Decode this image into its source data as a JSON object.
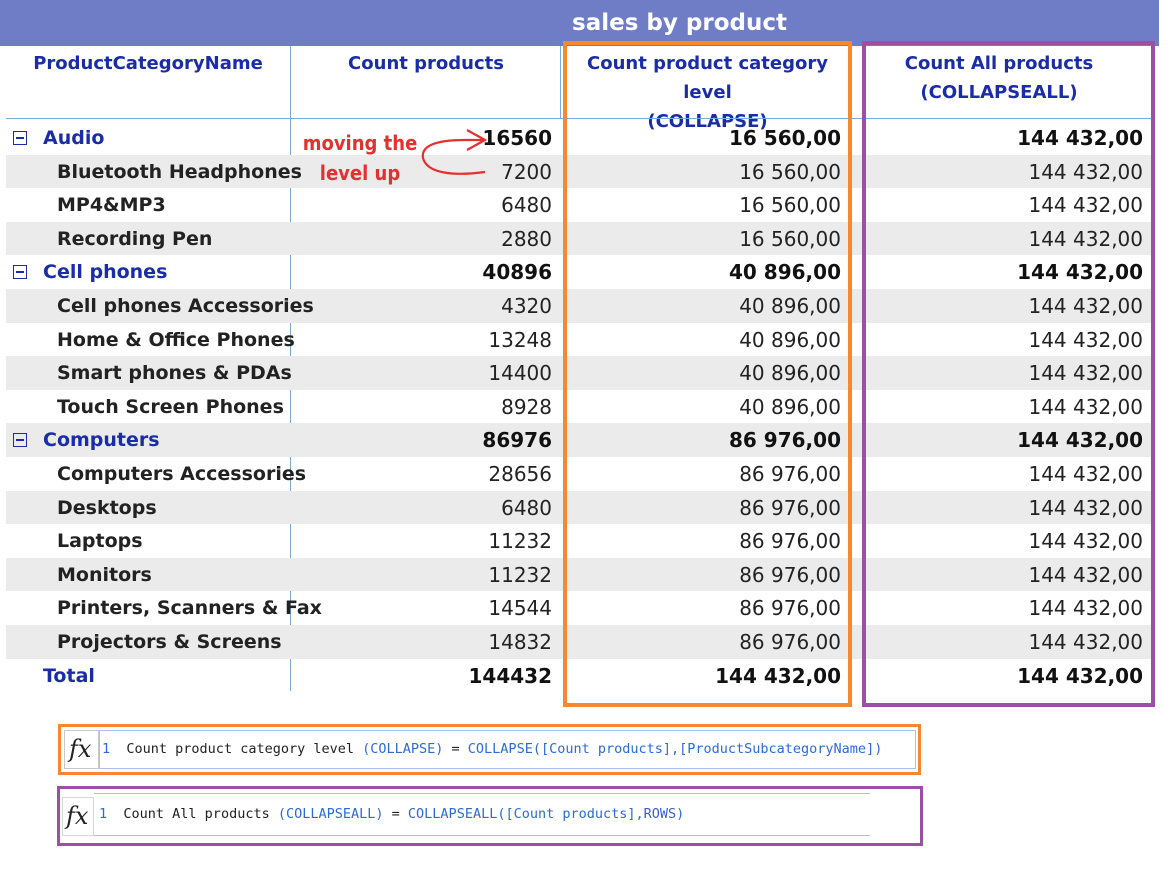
{
  "title": "sales by product",
  "headers": {
    "col0": "ProductCategoryName",
    "col1": "Count products",
    "col2_line1": "Count product category level",
    "col2_line2": "(COLLAPSE)",
    "col3_line1": "Count All products",
    "col3_line2": "(COLLAPSEALL)"
  },
  "rows": [
    {
      "type": "category",
      "name": "Audio",
      "v1": "16560",
      "v2": "16 560,00",
      "v3": "144 432,00"
    },
    {
      "type": "sub",
      "name": "Bluetooth Headphones",
      "v1": "7200",
      "v2": "16 560,00",
      "v3": "144 432,00"
    },
    {
      "type": "sub",
      "name": "MP4&MP3",
      "v1": "6480",
      "v2": "16 560,00",
      "v3": "144 432,00"
    },
    {
      "type": "sub",
      "name": "Recording Pen",
      "v1": "2880",
      "v2": "16 560,00",
      "v3": "144 432,00"
    },
    {
      "type": "category",
      "name": "Cell phones",
      "v1": "40896",
      "v2": "40 896,00",
      "v3": "144 432,00"
    },
    {
      "type": "sub",
      "name": "Cell phones Accessories",
      "v1": "4320",
      "v2": "40 896,00",
      "v3": "144 432,00"
    },
    {
      "type": "sub",
      "name": "Home & Office Phones",
      "v1": "13248",
      "v2": "40 896,00",
      "v3": "144 432,00"
    },
    {
      "type": "sub",
      "name": "Smart phones & PDAs",
      "v1": "14400",
      "v2": "40 896,00",
      "v3": "144 432,00"
    },
    {
      "type": "sub",
      "name": "Touch Screen Phones",
      "v1": "8928",
      "v2": "40 896,00",
      "v3": "144 432,00"
    },
    {
      "type": "category",
      "name": "Computers",
      "v1": "86976",
      "v2": "86 976,00",
      "v3": "144 432,00"
    },
    {
      "type": "sub",
      "name": "Computers Accessories",
      "v1": "28656",
      "v2": "86 976,00",
      "v3": "144 432,00"
    },
    {
      "type": "sub",
      "name": "Desktops",
      "v1": "6480",
      "v2": "86 976,00",
      "v3": "144 432,00"
    },
    {
      "type": "sub",
      "name": "Laptops",
      "v1": "11232",
      "v2": "86 976,00",
      "v3": "144 432,00"
    },
    {
      "type": "sub",
      "name": "Monitors",
      "v1": "11232",
      "v2": "86 976,00",
      "v3": "144 432,00"
    },
    {
      "type": "sub",
      "name": "Printers, Scanners & Fax",
      "v1": "14544",
      "v2": "86 976,00",
      "v3": "144 432,00"
    },
    {
      "type": "sub",
      "name": "Projectors & Screens",
      "v1": "14832",
      "v2": "86 976,00",
      "v3": "144 432,00"
    },
    {
      "type": "total",
      "name": "Total",
      "v1": "144432",
      "v2": "144 432,00",
      "v3": "144 432,00"
    }
  ],
  "annotation": {
    "line1": "moving the",
    "line2": "level up"
  },
  "formulas": [
    {
      "line_no": "1",
      "measure": "Count product category level",
      "measure_paren": "(COLLAPSE)",
      "eq": " = ",
      "fn": "COLLAPSE",
      "args": "([Count products],[ProductSubcategoryName])"
    },
    {
      "line_no": "1",
      "measure": "Count All products",
      "measure_paren": "(COLLAPSEALL)",
      "eq": " = ",
      "fn": "COLLAPSEALL",
      "args_a": "([Count products],",
      "args_kw": "ROWS",
      "args_b": ")"
    }
  ],
  "colors": {
    "title_bar": "#6f7cc6",
    "header_text": "#1a2ca8",
    "orange_highlight": "#f7882f",
    "purple_highlight": "#9b4fa6",
    "annotation_red": "#e63030"
  },
  "icons": {
    "expand": "collapse-minus-icon",
    "formula": "fx-icon"
  }
}
